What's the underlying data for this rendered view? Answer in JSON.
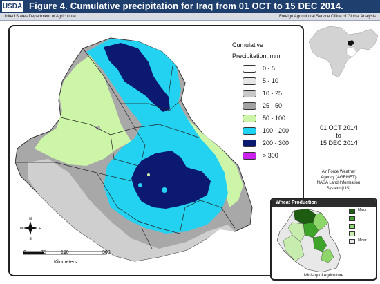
{
  "header": {
    "logo": "USDA",
    "title": "Figure 4.  Cumulative precipitation for Iraq from 01 OCT to 15 DEC 2014.",
    "dept": "United States Department of Agriculture",
    "service": "Foreign Agricultural Service   Office of Global Analysis"
  },
  "legend": {
    "title1": "Cumulative",
    "title2": "Precipitation, mm",
    "items": [
      {
        "label": "0 - 5",
        "color": "#ffffff"
      },
      {
        "label": "5 - 10",
        "color": "#e6e6e6"
      },
      {
        "label": "10 - 25",
        "color": "#c8c8c8"
      },
      {
        "label": "25 - 50",
        "color": "#a3a3a3"
      },
      {
        "label": "50 - 100",
        "color": "#ccf5a8"
      },
      {
        "label": "100 - 200",
        "color": "#1fd4f2"
      },
      {
        "label": "200 - 300",
        "color": "#0a1a6e"
      },
      {
        "label": "> 300",
        "color": "#cc22ee"
      }
    ]
  },
  "dates": {
    "from": "01 OCT 2014",
    "to": "to",
    "until": "15 DEC 2014"
  },
  "source": {
    "line1": "Air Force Weather",
    "line2": "Agency (AGRMET)",
    "line3": "NASA Land Information",
    "line4": "System (LIS)"
  },
  "scale": {
    "ticks": [
      "0",
      "75",
      "150",
      "300"
    ],
    "unit": "Kilometers"
  },
  "compass": {
    "n": "N",
    "s": "S",
    "e": "E",
    "w": "W"
  },
  "wheat": {
    "title": "Wheat Production",
    "levels": [
      {
        "label": "Major",
        "color": "#1e5c12"
      },
      {
        "label": "",
        "color": "#3ea52a"
      },
      {
        "label": "",
        "color": "#8fd66a"
      },
      {
        "label": "",
        "color": "#c6ecae"
      },
      {
        "label": "Minor",
        "color": "#e8e8e8"
      }
    ],
    "footer": "Ministry of Agriculture"
  }
}
